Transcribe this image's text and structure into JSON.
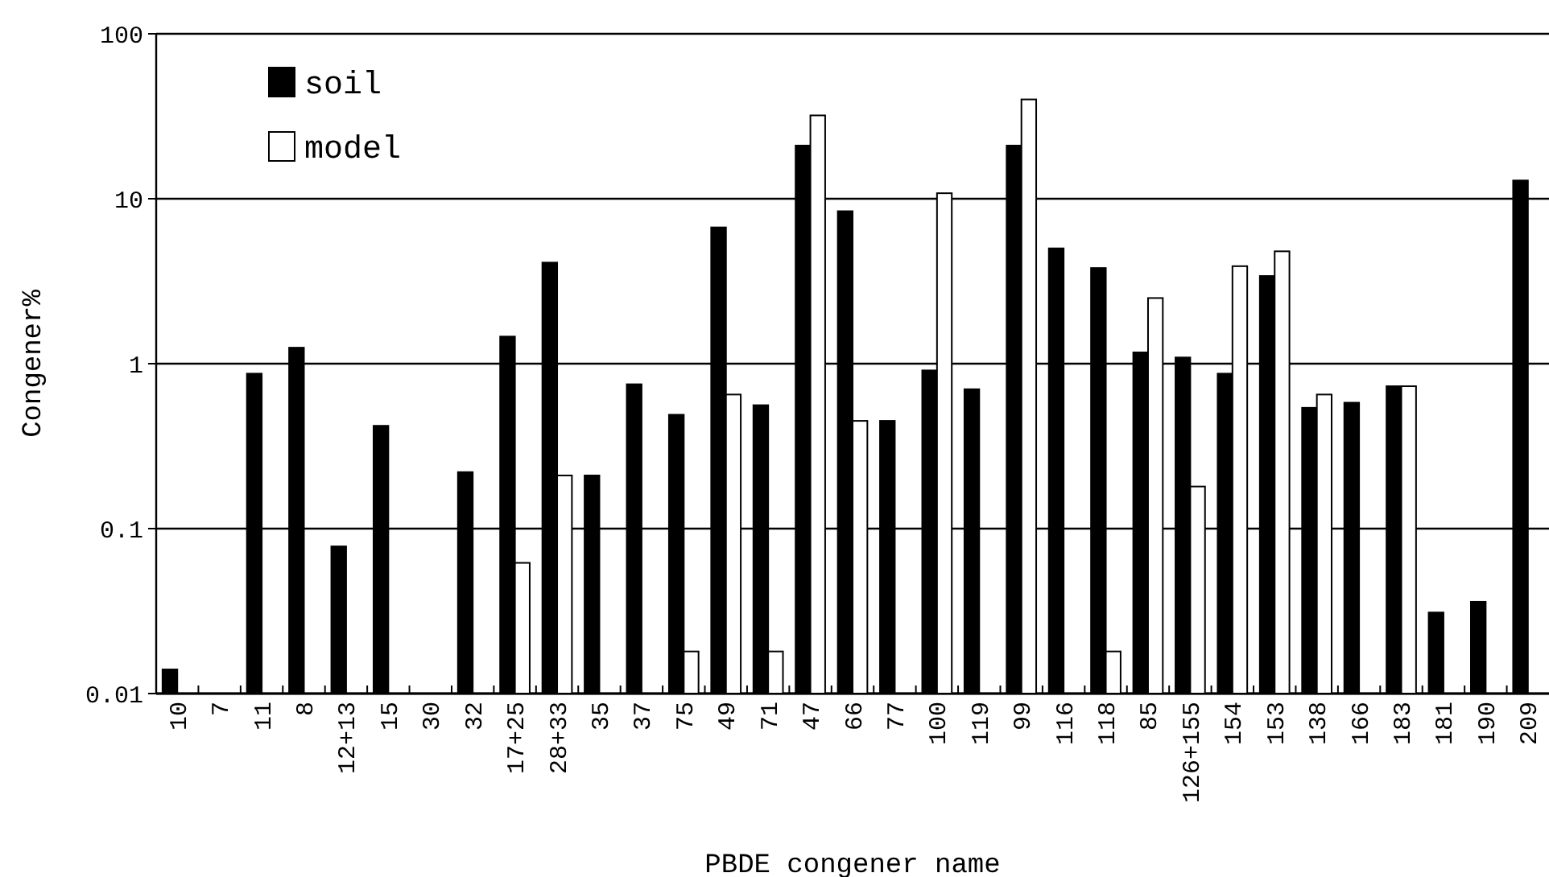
{
  "chart_data": {
    "type": "bar",
    "xlabel": "PBDE congener name",
    "ylabel": "Congener%",
    "categories": [
      "10",
      "7",
      "11",
      "8",
      "12+13",
      "15",
      "30",
      "32",
      "17+25",
      "28+33",
      "35",
      "37",
      "75",
      "49",
      "71",
      "47",
      "66",
      "77",
      "100",
      "119",
      "99",
      "116",
      "118",
      "85",
      "126+155",
      "154",
      "153",
      "138",
      "166",
      "183",
      "181",
      "190",
      "209"
    ],
    "series": [
      {
        "name": "soil",
        "color": "#000000",
        "values": [
          0.014,
          null,
          0.87,
          1.25,
          0.078,
          0.42,
          null,
          0.22,
          1.46,
          4.1,
          0.21,
          0.75,
          0.49,
          6.7,
          0.56,
          21,
          8.4,
          0.45,
          0.91,
          0.7,
          21,
          5.0,
          3.8,
          1.17,
          1.09,
          0.87,
          3.4,
          0.54,
          0.58,
          0.73,
          0.031,
          0.036,
          12.9
        ]
      },
      {
        "name": "model",
        "color": "#ffffff",
        "values": [
          null,
          null,
          null,
          null,
          null,
          null,
          null,
          null,
          0.062,
          0.21,
          null,
          null,
          0.018,
          0.65,
          0.018,
          32,
          0.45,
          null,
          10.8,
          null,
          40,
          null,
          0.018,
          2.5,
          0.18,
          3.9,
          4.8,
          0.65,
          null,
          0.73,
          null,
          null,
          null
        ]
      }
    ],
    "log": true,
    "ylim": [
      0.01,
      100
    ],
    "yticks": [
      0.01,
      0.1,
      1,
      10,
      100
    ],
    "grid": "y",
    "legend": "top left"
  }
}
